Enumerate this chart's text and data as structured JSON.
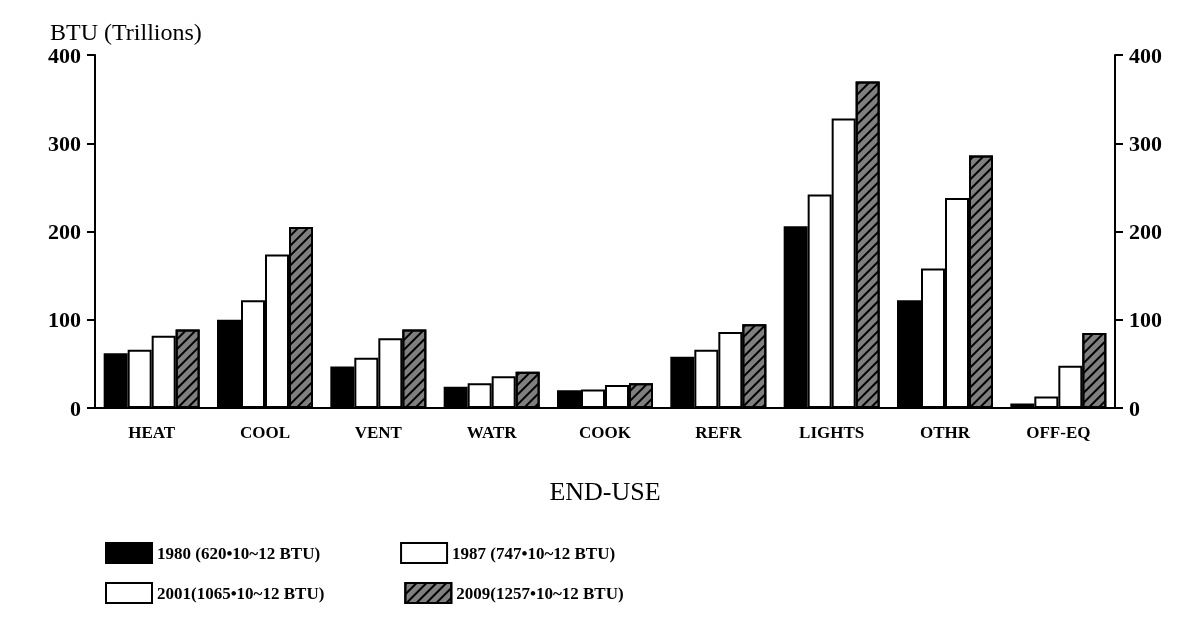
{
  "chart_data": {
    "type": "bar",
    "ylabel": "BTU (Trillions)",
    "xlabel": "END-USE",
    "categories": [
      "HEAT",
      "COOL",
      "VENT",
      "WATR",
      "COOK",
      "REFR",
      "LIGHTS",
      "OTHR",
      "OFF-EQ"
    ],
    "series": [
      {
        "name": "1980 (620•10~12 BTU)",
        "color": "#000000",
        "values": [
          62,
          100,
          47,
          24,
          20,
          58,
          206,
          122,
          5
        ]
      },
      {
        "name": "1987 (747•10~12 BTU)",
        "color": "#ffffff",
        "values": [
          66,
          122,
          57,
          28,
          21,
          66,
          242,
          158,
          13
        ]
      },
      {
        "name": "2001(1065•10~12 BTU)",
        "color": "#ffffff",
        "values": [
          82,
          174,
          79,
          36,
          26,
          86,
          328,
          238,
          48
        ]
      },
      {
        "name": "2009(1257•10~12 BTU)",
        "color": "#7f7f7f",
        "values": [
          89,
          205,
          89,
          41,
          28,
          95,
          370,
          286,
          85
        ]
      }
    ],
    "ylim": [
      0,
      400
    ],
    "yticks": [
      0,
      100,
      200,
      300,
      400
    ],
    "y2lim": [
      0,
      400
    ],
    "y2ticks": [
      0,
      100,
      200,
      300,
      400
    ],
    "grid": false,
    "legend": "bottom"
  }
}
